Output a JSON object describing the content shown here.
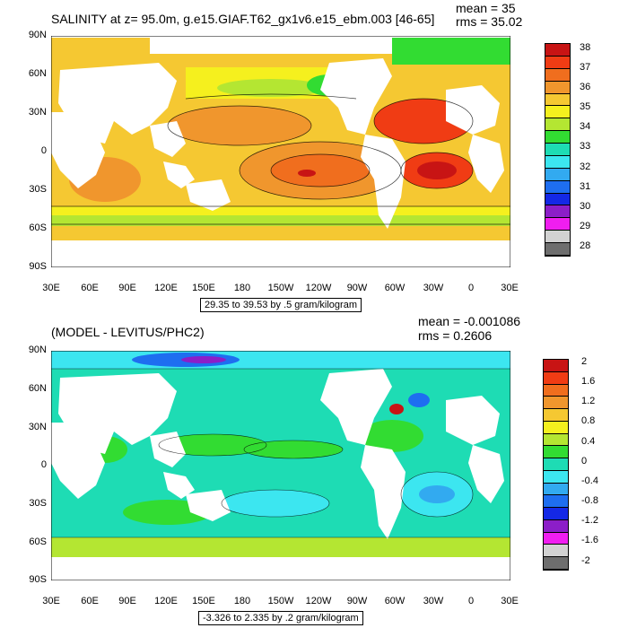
{
  "panel_top": {
    "title": "SALINITY at z=  95.0m, g.e15.GIAF.T62_gx1v6.e15_ebm.003 [46-65]",
    "mean_label": "mean = 35",
    "rms_label": "rms = 35.02",
    "contour_info": "29.35 to 39.53 by .5 gram/kilogram",
    "colorbar_labels": [
      "38",
      "37",
      "36",
      "35",
      "34",
      "33",
      "32",
      "31",
      "30",
      "29",
      "28"
    ],
    "colorbar_colors": [
      "#c81414",
      "#f03c14",
      "#f06e1e",
      "#f0962d",
      "#f5c832",
      "#f5f01e",
      "#b4e632",
      "#32dc32",
      "#1edcb4",
      "#3ce6f0",
      "#32aaf0",
      "#1e6ef0",
      "#1428e6",
      "#8c1ec8",
      "#f01ef0",
      "#d2d2d2",
      "#6e6e6e"
    ]
  },
  "panel_bottom": {
    "title": "(MODEL - LEVITUS/PHC2)",
    "mean_label": "mean = -0.001086",
    "rms_label": "rms = 0.2606",
    "contour_info": "-3.326 to 2.335 by .2 gram/kilogram",
    "colorbar_labels": [
      "2",
      "1.6",
      "1.2",
      "0.8",
      "0.4",
      "0",
      "-0.4",
      "-0.8",
      "-1.2",
      "-1.6",
      "-2"
    ],
    "colorbar_colors": [
      "#c81414",
      "#f03c14",
      "#f06e1e",
      "#f0962d",
      "#f5c832",
      "#f5f01e",
      "#b4e632",
      "#32dc32",
      "#1edcb4",
      "#3ce6f0",
      "#32aaf0",
      "#1e6ef0",
      "#1428e6",
      "#8c1ec8",
      "#f01ef0",
      "#d2d2d2",
      "#6e6e6e"
    ]
  },
  "lat_ticks": [
    "90N",
    "60N",
    "30N",
    "0",
    "30S",
    "60S",
    "90S"
  ],
  "lon_ticks": [
    "30E",
    "60E",
    "90E",
    "120E",
    "150E",
    "180",
    "150W",
    "120W",
    "90W",
    "60W",
    "30W",
    "0",
    "30E"
  ]
}
